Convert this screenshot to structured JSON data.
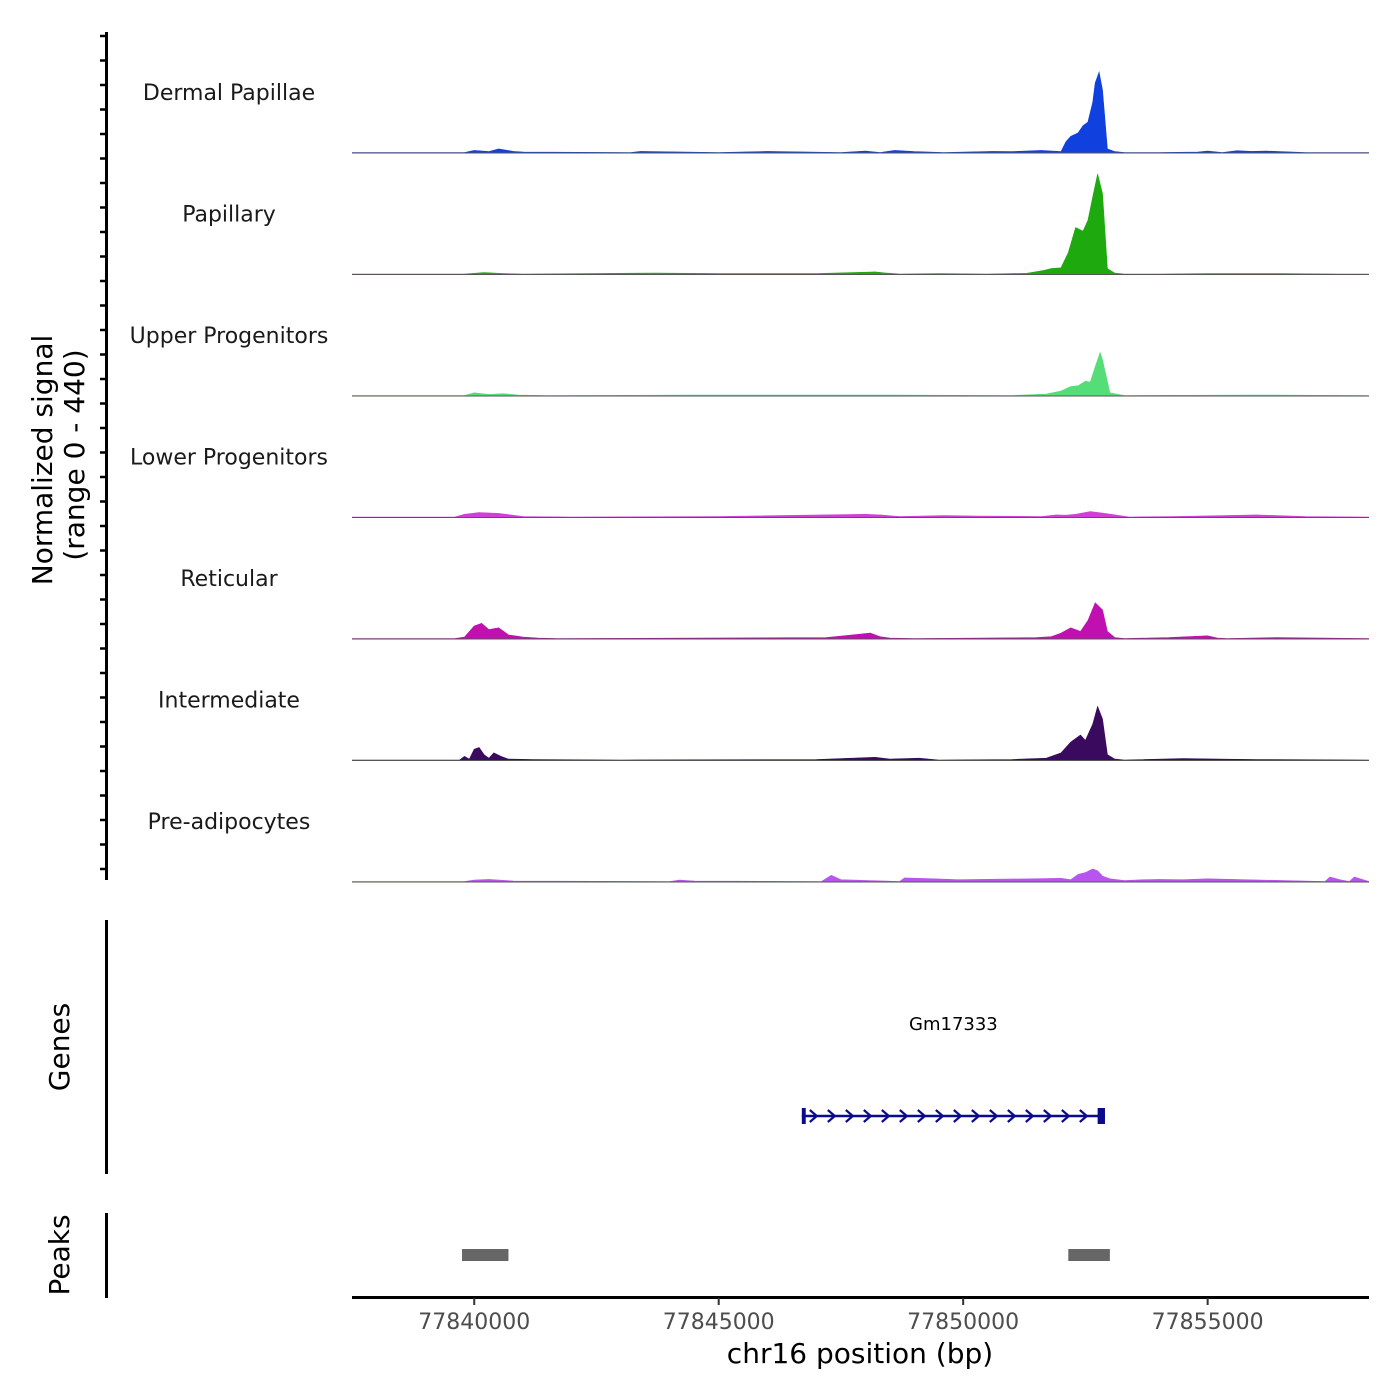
{
  "chart_data": {
    "type": "area",
    "title": "",
    "ylabel_line1": "Normalized signal",
    "ylabel_line2": "(range 0 - 440)",
    "genes_label": "Genes",
    "peaks_label": "Peaks",
    "xlabel": "chr16 position (bp)",
    "xlim": [
      77837500,
      77858300
    ],
    "ylim": [
      0,
      440
    ],
    "xticks": [
      77840000,
      77845000,
      77850000,
      77855000
    ],
    "xtick_labels": [
      "77840000",
      "77845000",
      "77850000",
      "77855000"
    ],
    "series": [
      {
        "name": "Dermal Papillae",
        "color": "#1040DD",
        "x": [
          77837500,
          77839800,
          77840000,
          77840300,
          77840500,
          77840800,
          77841000,
          77843200,
          77843400,
          77845000,
          77846000,
          77847500,
          77848000,
          77848300,
          77848600,
          77849000,
          77849600,
          77850600,
          77851000,
          77851600,
          77852000,
          77852100,
          77852200,
          77852350,
          77852450,
          77852550,
          77852650,
          77852700,
          77852780,
          77852850,
          77852950,
          77853100,
          77853300,
          77853600,
          77854000,
          77854800,
          77855000,
          77855300,
          77855600,
          77855900,
          77856200,
          77857000,
          77858300
        ],
        "values": [
          0,
          0,
          12,
          5,
          20,
          6,
          3,
          0,
          6,
          0,
          6,
          0,
          8,
          0,
          12,
          5,
          0,
          6,
          5,
          12,
          5,
          60,
          90,
          110,
          150,
          170,
          280,
          390,
          450,
          350,
          20,
          5,
          0,
          0,
          0,
          3,
          8,
          0,
          10,
          6,
          8,
          0,
          0
        ]
      },
      {
        "name": "Papillary",
        "color": "#1EAA0E",
        "x": [
          77837500,
          77839800,
          77840200,
          77840600,
          77841000,
          77843700,
          77845000,
          77847000,
          77848200,
          77848400,
          77848700,
          77849500,
          77850500,
          77851300,
          77851650,
          77851800,
          77852000,
          77852150,
          77852300,
          77852450,
          77852550,
          77852650,
          77852750,
          77852850,
          77852950,
          77853100,
          77853300,
          77854000,
          77855000,
          77856500,
          77857700,
          77858300
        ],
        "values": [
          0,
          0,
          8,
          3,
          0,
          5,
          3,
          2,
          12,
          6,
          0,
          3,
          0,
          4,
          20,
          30,
          35,
          120,
          260,
          240,
          300,
          430,
          560,
          450,
          30,
          5,
          0,
          0,
          3,
          2,
          0,
          0
        ]
      },
      {
        "name": "Upper Progenitors",
        "color": "#55DD77",
        "x": [
          77837500,
          77839800,
          77840000,
          77840300,
          77840600,
          77840900,
          77841500,
          77844500,
          77848000,
          77851000,
          77851700,
          77852000,
          77852200,
          77852350,
          77852500,
          77852600,
          77852700,
          77852800,
          77852850,
          77853000,
          77853300,
          77856000,
          77858300
        ],
        "values": [
          0,
          0,
          15,
          6,
          10,
          3,
          0,
          2,
          3,
          0,
          8,
          25,
          50,
          55,
          80,
          75,
          160,
          240,
          200,
          15,
          0,
          3,
          0
        ]
      },
      {
        "name": "Lower Progenitors",
        "color": "#D040D8",
        "x": [
          77837500,
          77839600,
          77839800,
          77840100,
          77840500,
          77841000,
          77842000,
          77845000,
          77848000,
          77848300,
          77848700,
          77849600,
          77850300,
          77851600,
          77851900,
          77852100,
          77852300,
          77852600,
          77852900,
          77853400,
          77854300,
          77856000,
          77857000,
          77858300
        ],
        "values": [
          0,
          0,
          15,
          25,
          20,
          3,
          0,
          3,
          15,
          12,
          3,
          8,
          5,
          3,
          12,
          10,
          15,
          30,
          20,
          0,
          3,
          12,
          3,
          0
        ]
      },
      {
        "name": "Reticular",
        "color": "#C010B0",
        "x": [
          77837500,
          77839600,
          77839800,
          77840000,
          77840150,
          77840300,
          77840500,
          77840700,
          77841000,
          77841300,
          77841700,
          77844600,
          77847200,
          77848100,
          77848300,
          77848500,
          77849000,
          77851500,
          77851800,
          77852000,
          77852200,
          77852400,
          77852550,
          77852700,
          77852850,
          77852950,
          77853100,
          77853300,
          77854200,
          77855000,
          77855200,
          77855400,
          77856400,
          77858300
        ],
        "values": [
          0,
          0,
          8,
          70,
          85,
          50,
          60,
          20,
          8,
          3,
          0,
          2,
          5,
          30,
          10,
          3,
          0,
          5,
          10,
          30,
          60,
          40,
          100,
          200,
          160,
          40,
          5,
          0,
          5,
          15,
          3,
          0,
          5,
          0
        ]
      },
      {
        "name": "Intermediate",
        "color": "#3A0A5E",
        "x": [
          77837500,
          77839700,
          77839800,
          77839900,
          77840000,
          77840100,
          77840200,
          77840300,
          77840400,
          77840550,
          77840700,
          77841200,
          77843000,
          77847000,
          77848200,
          77848500,
          77849100,
          77849500,
          77851000,
          77851700,
          77852000,
          77852200,
          77852400,
          77852500,
          77852650,
          77852750,
          77852850,
          77852950,
          77853100,
          77853300,
          77854500,
          77855000,
          77856000,
          77858300
        ],
        "values": [
          0,
          0,
          20,
          5,
          60,
          70,
          30,
          10,
          40,
          20,
          5,
          3,
          0,
          3,
          15,
          5,
          10,
          0,
          3,
          10,
          40,
          100,
          140,
          110,
          200,
          300,
          230,
          30,
          5,
          0,
          8,
          6,
          3,
          0
        ]
      },
      {
        "name": "Pre-adipocytes",
        "color": "#B855EE",
        "x": [
          77837500,
          77839800,
          77840000,
          77840300,
          77840500,
          77840800,
          77844000,
          77844200,
          77844500,
          77847100,
          77847300,
          77847500,
          77848700,
          77848800,
          77849400,
          77849900,
          77851400,
          77852000,
          77852200,
          77852350,
          77852500,
          77852650,
          77852750,
          77852850,
          77853000,
          77853300,
          77853700,
          77854000,
          77854500,
          77855000,
          77857400,
          77857500,
          77857700,
          77857900,
          77858000,
          77858300
        ],
        "values": [
          0,
          0,
          8,
          12,
          8,
          3,
          0,
          8,
          3,
          0,
          35,
          10,
          0,
          20,
          15,
          10,
          15,
          18,
          10,
          40,
          50,
          70,
          60,
          30,
          15,
          5,
          10,
          12,
          10,
          15,
          0,
          25,
          10,
          0,
          25,
          0
        ]
      }
    ],
    "genes": [
      {
        "name": "Gm17333",
        "start": 77846700,
        "end": 77852900,
        "strand": "+",
        "color": "#0A0A8C",
        "exons": [
          [
            77846700,
            77846780
          ],
          [
            77852750,
            77852900
          ]
        ]
      }
    ],
    "peaks": [
      {
        "start": 77839750,
        "end": 77840700,
        "color": "#666666"
      },
      {
        "start": 77852150,
        "end": 77853000,
        "color": "#666666"
      }
    ]
  }
}
